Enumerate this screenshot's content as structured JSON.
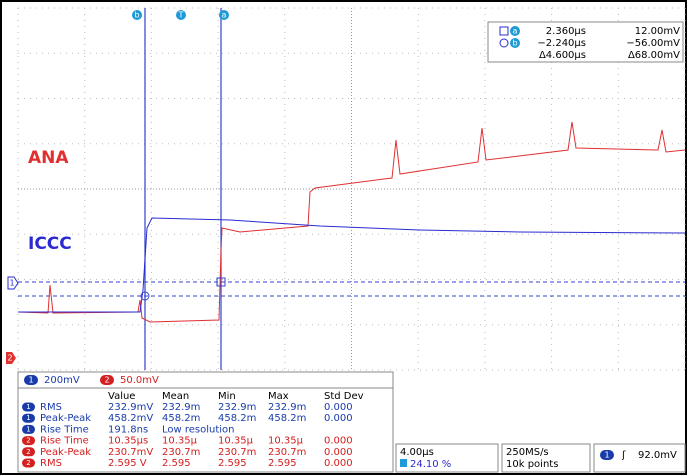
{
  "cursor_markers": [
    "b",
    "T",
    "a"
  ],
  "trace_labels": {
    "ana": "ANA",
    "iccc": "ICCC"
  },
  "axis_markers": [
    "1",
    "2"
  ],
  "cursor_readout": {
    "rows": [
      {
        "marker": "a",
        "time": "2.360µs",
        "voltage": "12.00mV"
      },
      {
        "marker": "b",
        "time": "−2.240µs",
        "voltage": "−56.00mV"
      },
      {
        "time": "Δ4.600µs",
        "voltage": "Δ68.00mV"
      }
    ]
  },
  "channel_bar": [
    {
      "channel": "1",
      "scale": "200mV"
    },
    {
      "channel": "2",
      "scale": "50.0mV"
    }
  ],
  "measurements": {
    "columns": [
      "Value",
      "Mean",
      "Min",
      "Max",
      "Std Dev"
    ],
    "rows": [
      {
        "channel": "1",
        "name": "RMS",
        "cells": [
          "232.9mV",
          "232.9m",
          "232.9m",
          "232.9m",
          "0.000"
        ]
      },
      {
        "channel": "1",
        "name": "Peak-Peak",
        "cells": [
          "458.2mV",
          "458.2m",
          "458.2m",
          "458.2m",
          "0.000"
        ]
      },
      {
        "channel": "1",
        "name": "Rise Time",
        "cells": [
          "191.8ns",
          "Low resolution"
        ]
      },
      {
        "channel": "2",
        "name": "Rise Time",
        "cells": [
          "10.35µs",
          "10.35µ",
          "10.35µ",
          "10.35µ",
          "0.000"
        ]
      },
      {
        "channel": "2",
        "name": "Peak-Peak",
        "cells": [
          "230.7mV",
          "230.7m",
          "230.7m",
          "230.7m",
          "0.000"
        ]
      },
      {
        "channel": "2",
        "name": "RMS",
        "cells": [
          "2.595 V",
          "2.595",
          "2.595",
          "2.595",
          "0.000"
        ]
      }
    ]
  },
  "status": {
    "timebase": "4.00µs",
    "trigger_position": "24.10 %",
    "sample_rate": "250MS/s",
    "record_length": "10k points",
    "trigger_channel": "1",
    "trigger_level": "92.0mV"
  }
}
